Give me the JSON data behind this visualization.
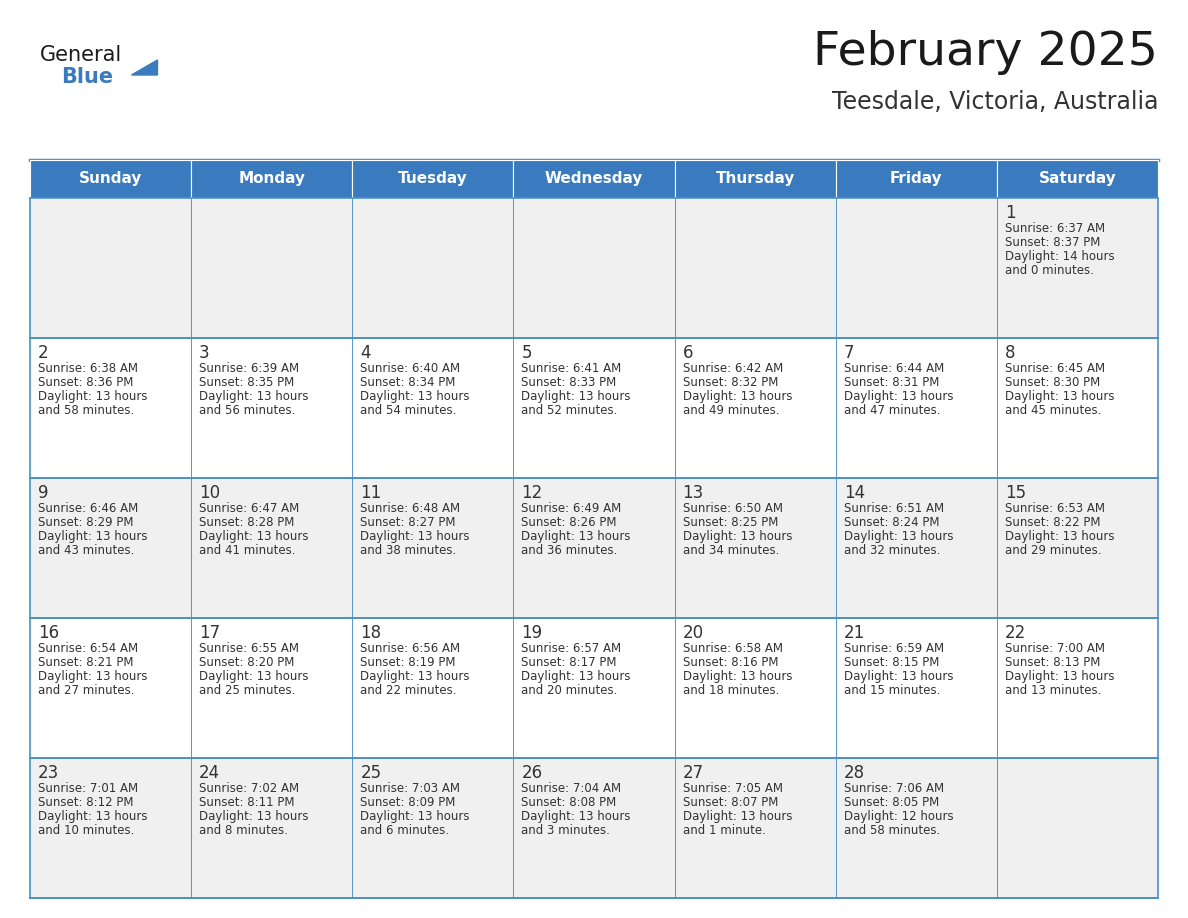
{
  "title": "February 2025",
  "subtitle": "Teesdale, Victoria, Australia",
  "days_of_week": [
    "Sunday",
    "Monday",
    "Tuesday",
    "Wednesday",
    "Thursday",
    "Friday",
    "Saturday"
  ],
  "header_bg": "#3a7bbf",
  "header_text": "#ffffff",
  "row_bg_odd": "#f0f0f0",
  "row_bg_even": "#ffffff",
  "cell_border_color": "#4a90c4",
  "day_num_color": "#333333",
  "text_color": "#333333",
  "title_color": "#1a1a1a",
  "subtitle_color": "#333333",
  "logo_general_color": "#1a1a1a",
  "logo_blue_color": "#3a7bbf",
  "calendar_data": [
    [
      null,
      null,
      null,
      null,
      null,
      null,
      {
        "day": 1,
        "sunrise": "6:37 AM",
        "sunset": "8:37 PM",
        "daylight_hours": 14,
        "daylight_minutes": 0,
        "plural": true
      }
    ],
    [
      {
        "day": 2,
        "sunrise": "6:38 AM",
        "sunset": "8:36 PM",
        "daylight_hours": 13,
        "daylight_minutes": 58,
        "plural": true
      },
      {
        "day": 3,
        "sunrise": "6:39 AM",
        "sunset": "8:35 PM",
        "daylight_hours": 13,
        "daylight_minutes": 56,
        "plural": true
      },
      {
        "day": 4,
        "sunrise": "6:40 AM",
        "sunset": "8:34 PM",
        "daylight_hours": 13,
        "daylight_minutes": 54,
        "plural": true
      },
      {
        "day": 5,
        "sunrise": "6:41 AM",
        "sunset": "8:33 PM",
        "daylight_hours": 13,
        "daylight_minutes": 52,
        "plural": true
      },
      {
        "day": 6,
        "sunrise": "6:42 AM",
        "sunset": "8:32 PM",
        "daylight_hours": 13,
        "daylight_minutes": 49,
        "plural": true
      },
      {
        "day": 7,
        "sunrise": "6:44 AM",
        "sunset": "8:31 PM",
        "daylight_hours": 13,
        "daylight_minutes": 47,
        "plural": true
      },
      {
        "day": 8,
        "sunrise": "6:45 AM",
        "sunset": "8:30 PM",
        "daylight_hours": 13,
        "daylight_minutes": 45,
        "plural": true
      }
    ],
    [
      {
        "day": 9,
        "sunrise": "6:46 AM",
        "sunset": "8:29 PM",
        "daylight_hours": 13,
        "daylight_minutes": 43,
        "plural": true
      },
      {
        "day": 10,
        "sunrise": "6:47 AM",
        "sunset": "8:28 PM",
        "daylight_hours": 13,
        "daylight_minutes": 41,
        "plural": true
      },
      {
        "day": 11,
        "sunrise": "6:48 AM",
        "sunset": "8:27 PM",
        "daylight_hours": 13,
        "daylight_minutes": 38,
        "plural": true
      },
      {
        "day": 12,
        "sunrise": "6:49 AM",
        "sunset": "8:26 PM",
        "daylight_hours": 13,
        "daylight_minutes": 36,
        "plural": true
      },
      {
        "day": 13,
        "sunrise": "6:50 AM",
        "sunset": "8:25 PM",
        "daylight_hours": 13,
        "daylight_minutes": 34,
        "plural": true
      },
      {
        "day": 14,
        "sunrise": "6:51 AM",
        "sunset": "8:24 PM",
        "daylight_hours": 13,
        "daylight_minutes": 32,
        "plural": true
      },
      {
        "day": 15,
        "sunrise": "6:53 AM",
        "sunset": "8:22 PM",
        "daylight_hours": 13,
        "daylight_minutes": 29,
        "plural": true
      }
    ],
    [
      {
        "day": 16,
        "sunrise": "6:54 AM",
        "sunset": "8:21 PM",
        "daylight_hours": 13,
        "daylight_minutes": 27,
        "plural": true
      },
      {
        "day": 17,
        "sunrise": "6:55 AM",
        "sunset": "8:20 PM",
        "daylight_hours": 13,
        "daylight_minutes": 25,
        "plural": true
      },
      {
        "day": 18,
        "sunrise": "6:56 AM",
        "sunset": "8:19 PM",
        "daylight_hours": 13,
        "daylight_minutes": 22,
        "plural": true
      },
      {
        "day": 19,
        "sunrise": "6:57 AM",
        "sunset": "8:17 PM",
        "daylight_hours": 13,
        "daylight_minutes": 20,
        "plural": true
      },
      {
        "day": 20,
        "sunrise": "6:58 AM",
        "sunset": "8:16 PM",
        "daylight_hours": 13,
        "daylight_minutes": 18,
        "plural": true
      },
      {
        "day": 21,
        "sunrise": "6:59 AM",
        "sunset": "8:15 PM",
        "daylight_hours": 13,
        "daylight_minutes": 15,
        "plural": true
      },
      {
        "day": 22,
        "sunrise": "7:00 AM",
        "sunset": "8:13 PM",
        "daylight_hours": 13,
        "daylight_minutes": 13,
        "plural": true
      }
    ],
    [
      {
        "day": 23,
        "sunrise": "7:01 AM",
        "sunset": "8:12 PM",
        "daylight_hours": 13,
        "daylight_minutes": 10,
        "plural": true
      },
      {
        "day": 24,
        "sunrise": "7:02 AM",
        "sunset": "8:11 PM",
        "daylight_hours": 13,
        "daylight_minutes": 8,
        "plural": true
      },
      {
        "day": 25,
        "sunrise": "7:03 AM",
        "sunset": "8:09 PM",
        "daylight_hours": 13,
        "daylight_minutes": 6,
        "plural": true
      },
      {
        "day": 26,
        "sunrise": "7:04 AM",
        "sunset": "8:08 PM",
        "daylight_hours": 13,
        "daylight_minutes": 3,
        "plural": true
      },
      {
        "day": 27,
        "sunrise": "7:05 AM",
        "sunset": "8:07 PM",
        "daylight_hours": 13,
        "daylight_minutes": 1,
        "plural": false
      },
      {
        "day": 28,
        "sunrise": "7:06 AM",
        "sunset": "8:05 PM",
        "daylight_hours": 12,
        "daylight_minutes": 58,
        "plural": true
      },
      null
    ]
  ],
  "figure_width": 11.88,
  "figure_height": 9.18
}
